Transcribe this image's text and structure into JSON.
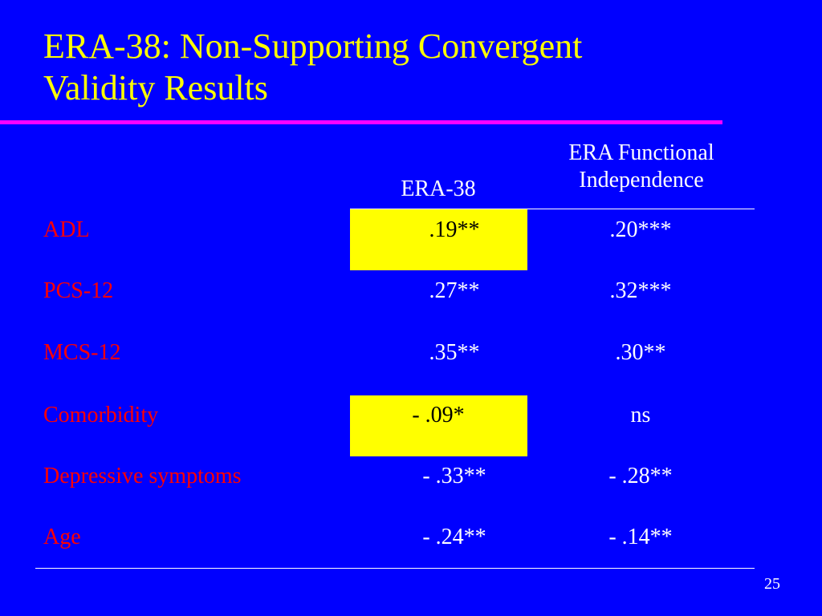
{
  "slide": {
    "title_lines": [
      "ERA-38: Non-Supporting Convergent",
      "Validity Results"
    ],
    "page_number": "25"
  },
  "table": {
    "headers": {
      "era38": [
        "ERA-38"
      ],
      "functional_independence": [
        "ERA Functional",
        "Independence"
      ]
    },
    "rows": [
      {
        "label": "ADL",
        "era38": ".19**",
        "functional_independence": ".20***",
        "highlight": true
      },
      {
        "label": "PCS-12",
        "era38": ".27**",
        "functional_independence": ".32***",
        "highlight": false
      },
      {
        "label": "MCS-12",
        "era38": ".35**",
        "functional_independence": ".30**",
        "highlight": false
      },
      {
        "label": "Comorbidity",
        "era38": "- .09*",
        "functional_independence": "ns",
        "highlight": true
      },
      {
        "label": "Depressive symptoms",
        "era38": "- .33**",
        "functional_independence": "- .28**",
        "highlight": false
      },
      {
        "label": "Age",
        "era38": "- .24**",
        "functional_independence": "- .14**",
        "highlight": false
      }
    ]
  },
  "colors": {
    "background": "#0000FF",
    "title": "#FFFF00",
    "accent_rule": "#FF00FF",
    "row_label": "#FF0000",
    "highlight": "#FFFF00",
    "value_text": "#FFFFFF"
  }
}
